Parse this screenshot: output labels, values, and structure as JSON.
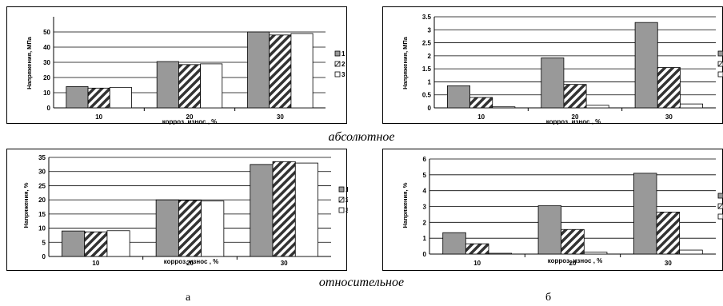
{
  "captions": {
    "absolute": "абсолютное",
    "relative": "относительное",
    "letter_a": "а",
    "letter_b": "б"
  },
  "chart_data": [
    {
      "id": "chart-a-abs",
      "type": "bar",
      "categories": [
        "10",
        "20",
        "30"
      ],
      "series": [
        {
          "name": "1",
          "values": [
            14,
            30.5,
            50
          ]
        },
        {
          "name": "2",
          "values": [
            13,
            28.5,
            48
          ]
        },
        {
          "name": "3",
          "values": [
            13.5,
            29,
            49
          ]
        }
      ],
      "ylim": [
        0,
        60
      ],
      "yticks": [
        "0",
        "10",
        "20",
        "30",
        "40",
        "50"
      ],
      "yticks_values": [
        0,
        10,
        20,
        30,
        40,
        50
      ],
      "ylabel": "Напряжения, МПа",
      "xlabel": "корроз. износ , %",
      "grid": true,
      "legend": "right"
    },
    {
      "id": "chart-b-abs",
      "type": "bar",
      "categories": [
        "10",
        "20",
        "30"
      ],
      "series": [
        {
          "values": [
            0.85,
            1.92,
            3.28
          ]
        },
        {
          "values": [
            0.4,
            0.9,
            1.55
          ]
        },
        {
          "values": [
            0.04,
            0.1,
            0.15
          ]
        }
      ],
      "ylim": [
        0,
        3.5
      ],
      "yticks": [
        "0",
        "0.5",
        "1",
        "1.5",
        "2",
        "2.5",
        "3",
        "3.5"
      ],
      "yticks_values": [
        0,
        0.5,
        1,
        1.5,
        2,
        2.5,
        3,
        3.5
      ],
      "ylabel": "Напряжения, МПа",
      "xlabel": "корроз. износ , %",
      "grid": true,
      "legend": "right"
    },
    {
      "id": "chart-a-rel",
      "type": "bar",
      "categories": [
        "10",
        "20",
        "30"
      ],
      "series": [
        {
          "name": "1",
          "values": [
            9,
            20,
            32.5
          ]
        },
        {
          "name": "2",
          "values": [
            8.7,
            19.8,
            33.5
          ]
        },
        {
          "name": "3",
          "values": [
            9.1,
            19.6,
            33
          ]
        }
      ],
      "ylim": [
        0,
        35
      ],
      "yticks": [
        "0",
        "5",
        "10",
        "15",
        "20",
        "25",
        "30",
        "35"
      ],
      "yticks_values": [
        0,
        5,
        10,
        15,
        20,
        25,
        30,
        35
      ],
      "ylabel": "Напряжения, %",
      "xlabel": "корроз. износ , %",
      "grid": true,
      "legend": "right"
    },
    {
      "id": "chart-b-rel",
      "type": "bar",
      "categories": [
        "10",
        "20",
        "30"
      ],
      "series": [
        {
          "values": [
            1.35,
            3.05,
            5.1
          ]
        },
        {
          "values": [
            0.65,
            1.55,
            2.65
          ]
        },
        {
          "values": [
            0.05,
            0.12,
            0.25
          ]
        }
      ],
      "ylim": [
        0,
        6
      ],
      "yticks": [
        "0",
        "1",
        "2",
        "3",
        "4",
        "5",
        "6"
      ],
      "yticks_values": [
        0,
        1,
        2,
        3,
        4,
        5,
        6
      ],
      "ylabel": "Напряжения, %",
      "xlabel": "корроз. износ , %",
      "grid": true,
      "legend": "right"
    }
  ]
}
